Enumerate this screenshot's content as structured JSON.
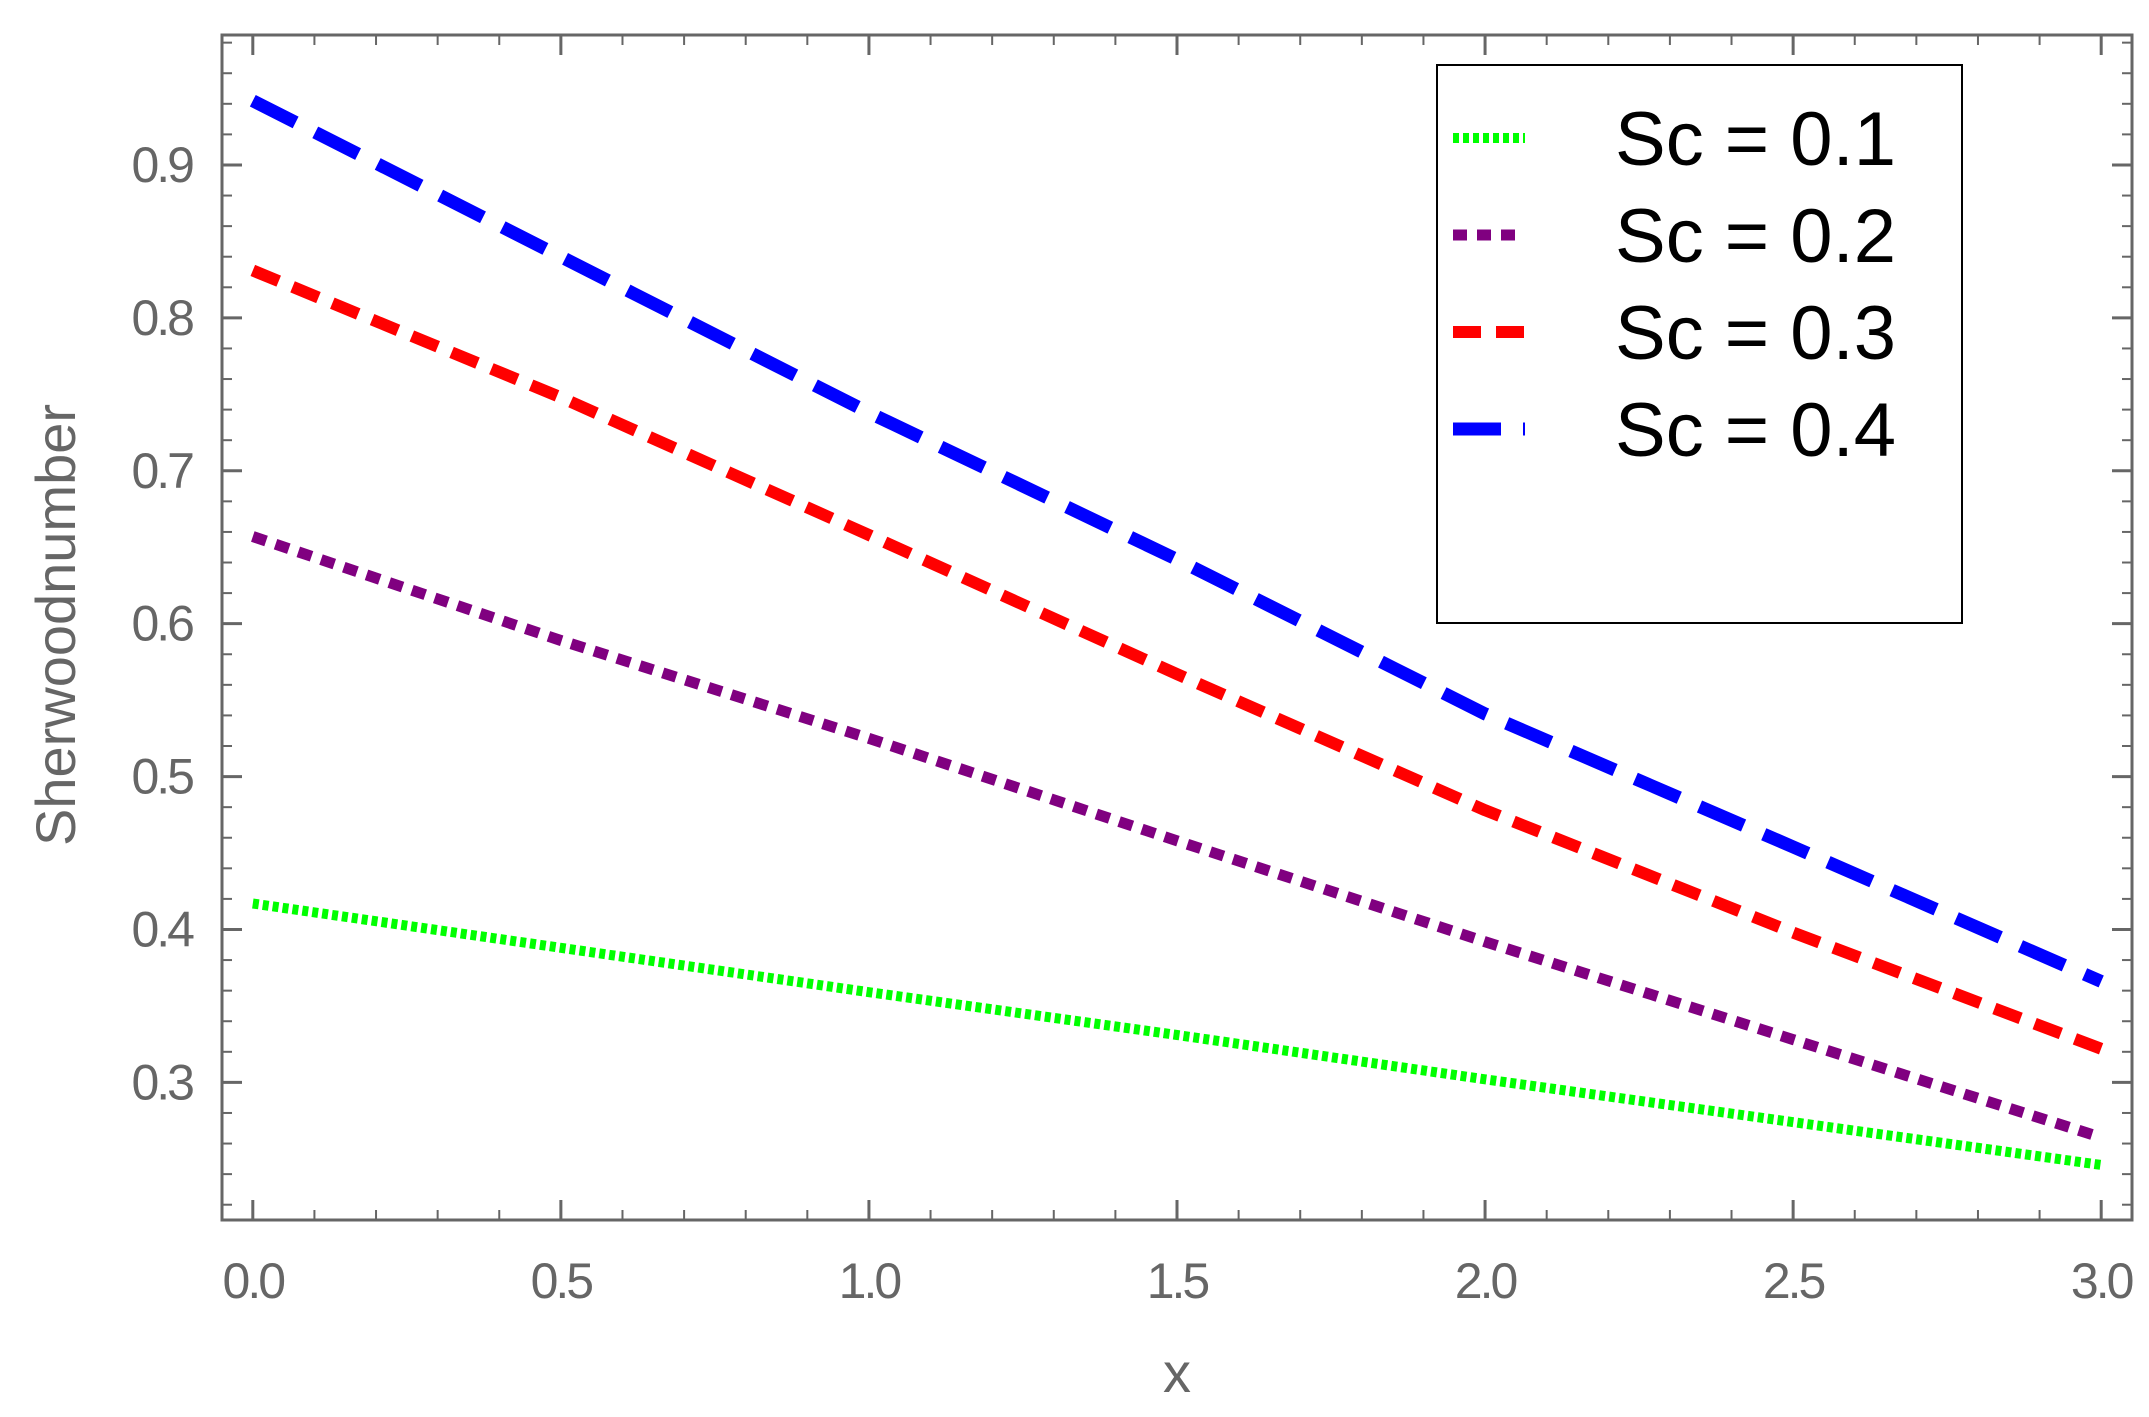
{
  "chart_data": {
    "type": "line",
    "xlabel": "x",
    "ylabel": "Sherwoodnumber",
    "xlim": [
      -0.05,
      3.05
    ],
    "ylim": [
      0.21,
      0.985
    ],
    "x_ticks": [
      0.0,
      0.5,
      1.0,
      1.5,
      2.0,
      2.5,
      3.0
    ],
    "x_tick_labels": [
      "0.0",
      "0.5",
      "1.0",
      "1.5",
      "2.0",
      "2.5",
      "3.0"
    ],
    "y_ticks": [
      0.3,
      0.4,
      0.5,
      0.6,
      0.7,
      0.8,
      0.9
    ],
    "y_tick_labels": [
      "0.3",
      "0.4",
      "0.5",
      "0.6",
      "0.7",
      "0.8",
      "0.9"
    ],
    "grid": false,
    "legend_position": "top-right",
    "series": [
      {
        "name": "Sc = 0.1",
        "color": "#00ff00",
        "dash": "dotted",
        "x": [
          0.0,
          0.5,
          1.0,
          1.5,
          2.0,
          2.5,
          3.0
        ],
        "values": [
          0.417,
          0.388,
          0.359,
          0.331,
          0.302,
          0.274,
          0.246
        ]
      },
      {
        "name": "Sc = 0.2",
        "color": "#800080",
        "dash": "short-dash",
        "x": [
          0.0,
          0.5,
          1.0,
          1.5,
          2.0,
          2.5,
          3.0
        ],
        "values": [
          0.657,
          0.589,
          0.525,
          0.458,
          0.392,
          0.328,
          0.264
        ]
      },
      {
        "name": "Sc = 0.3",
        "color": "#ff0000",
        "dash": "medium-dash",
        "x": [
          0.0,
          0.5,
          1.0,
          1.5,
          2.0,
          2.5,
          3.0
        ],
        "values": [
          0.831,
          0.748,
          0.658,
          0.567,
          0.478,
          0.398,
          0.322
        ]
      },
      {
        "name": "Sc = 0.4",
        "color": "#0000ff",
        "dash": "long-dash",
        "x": [
          0.0,
          0.5,
          1.0,
          1.5,
          2.0,
          2.5,
          3.0
        ],
        "values": [
          0.942,
          0.84,
          0.738,
          0.642,
          0.541,
          0.454,
          0.366
        ]
      }
    ]
  }
}
